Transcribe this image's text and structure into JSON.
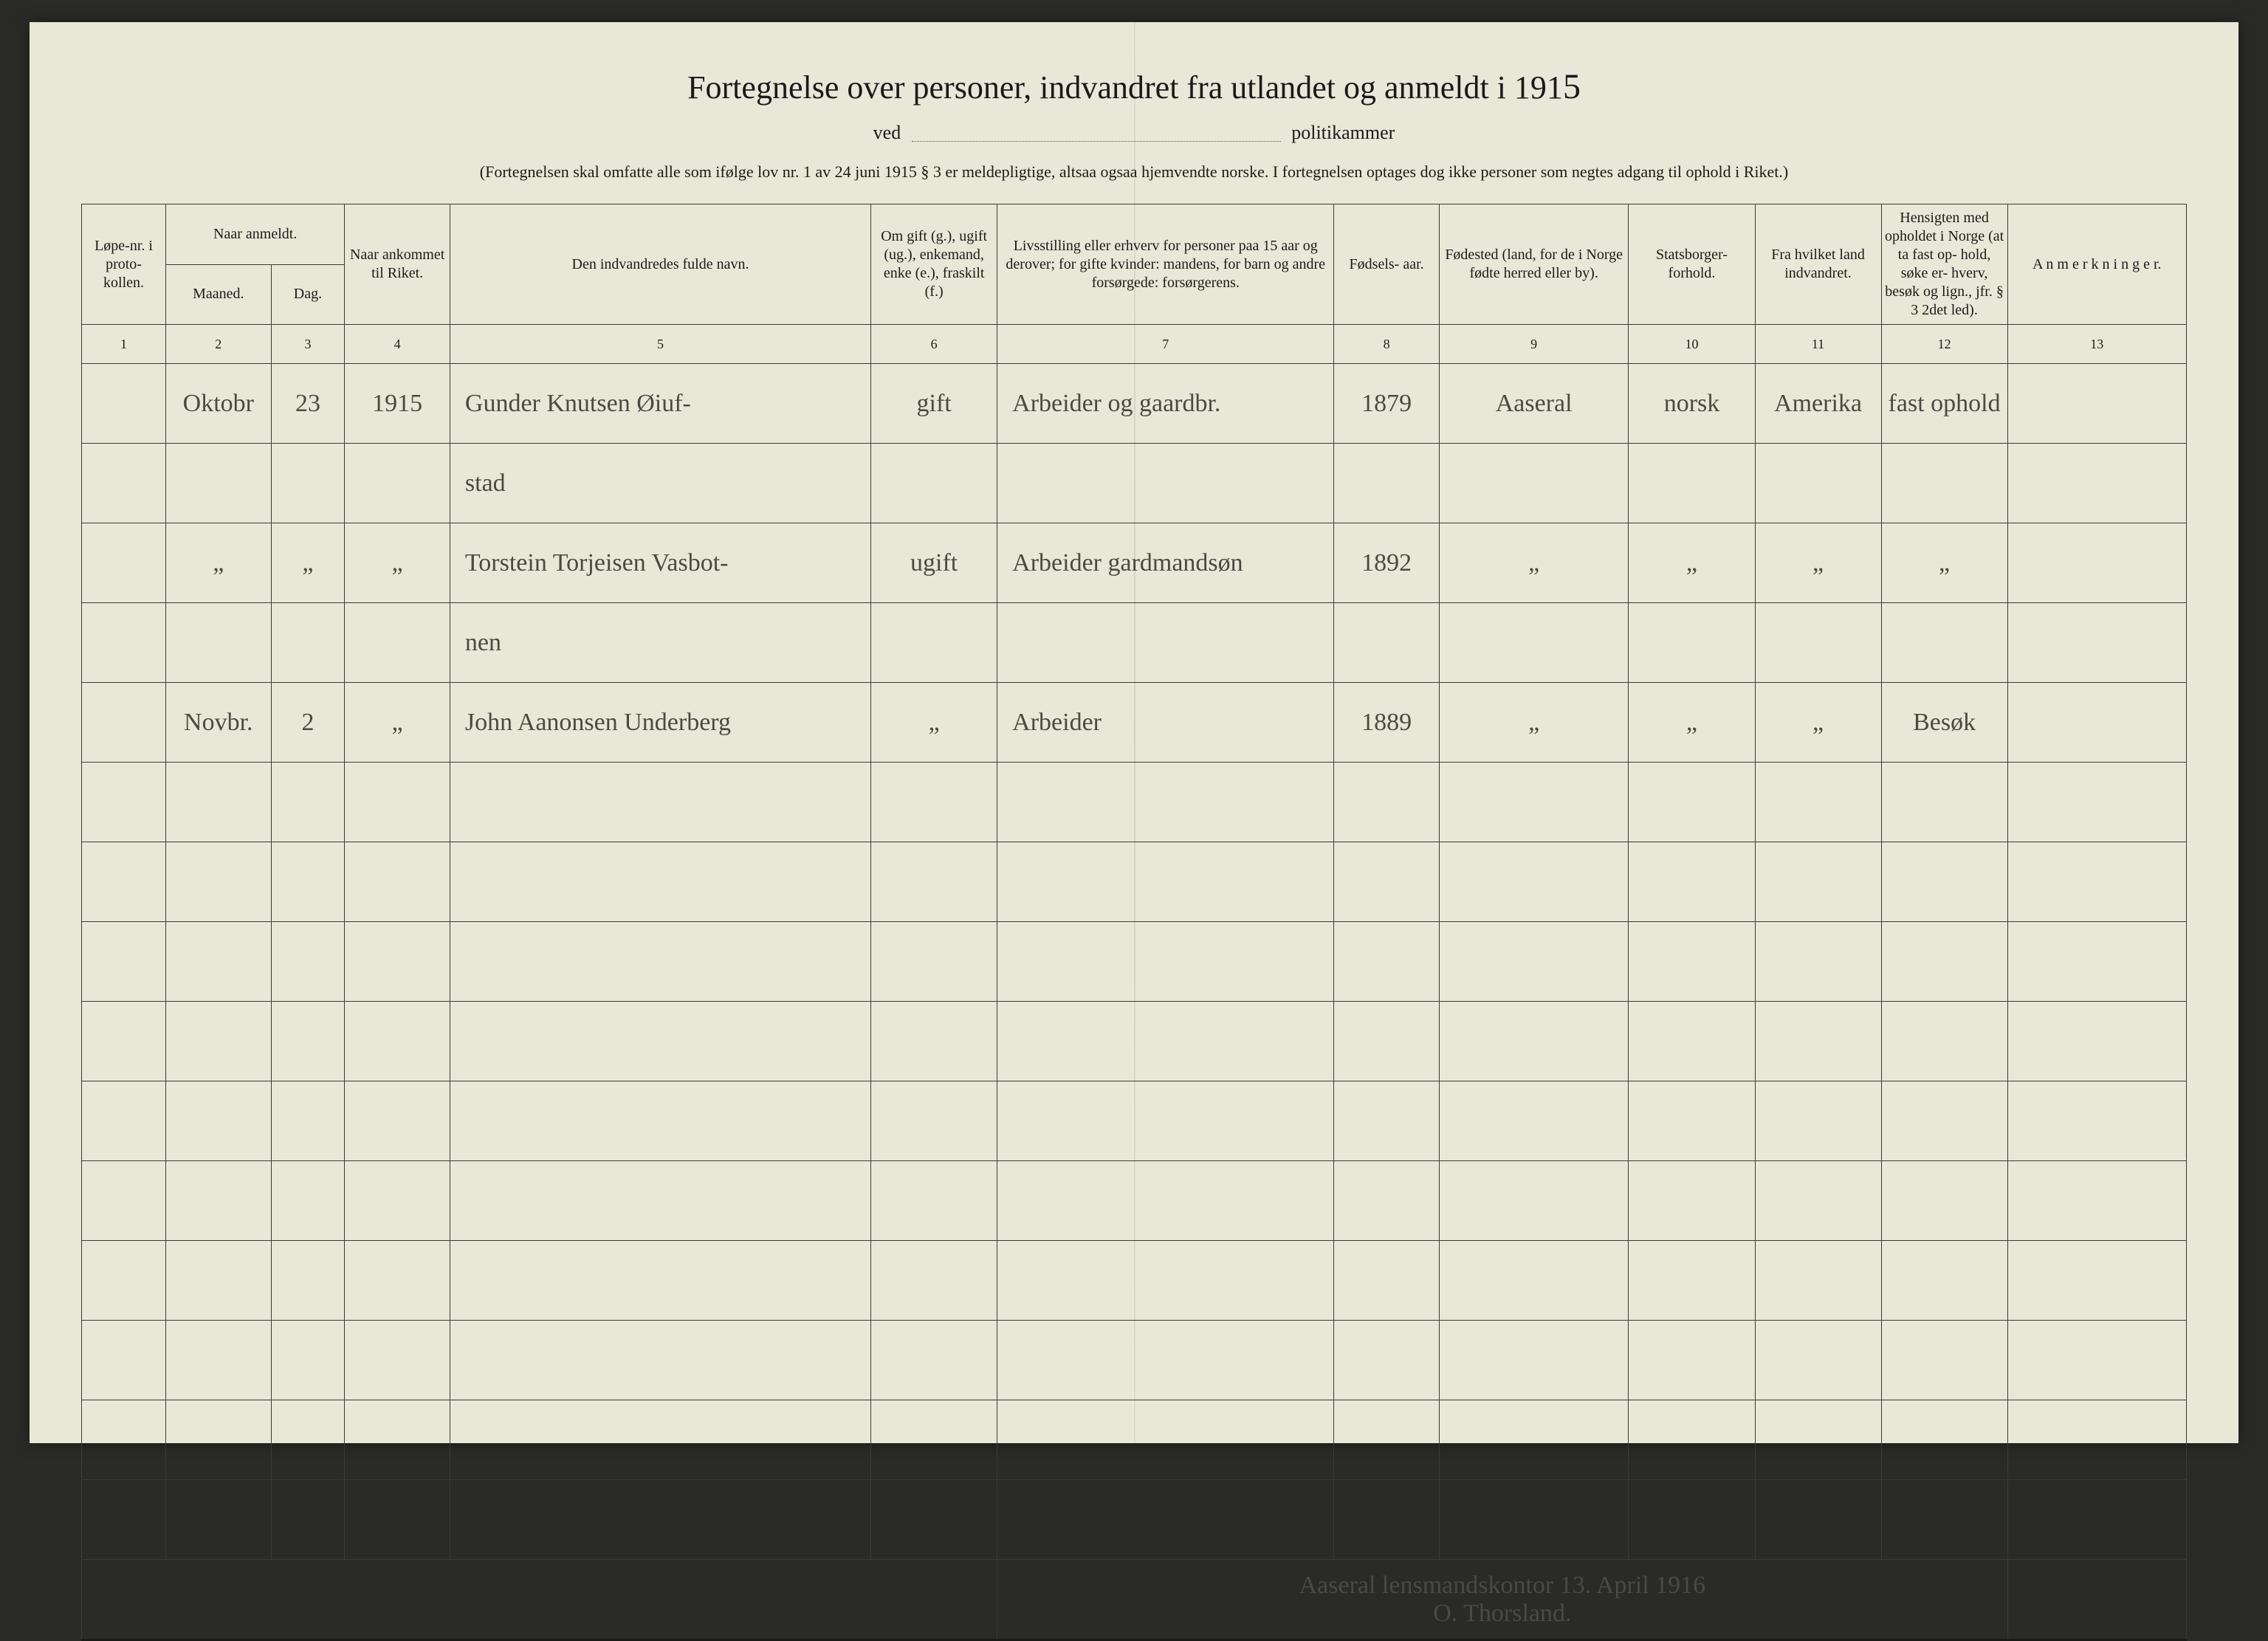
{
  "page": {
    "background_color": "#e9e8d8",
    "ink_color": "#1a1a1a",
    "handwriting_color": "#4a4a44",
    "border_color": "#3a3a3a"
  },
  "header": {
    "title_prefix": "Fortegnelse over personer, indvandret fra utlandet og anmeldt i 191",
    "title_year_hw": "5",
    "title_fontsize": 44,
    "ved": "ved",
    "politikammer": "politikammer",
    "note": "(Fortegnelsen skal omfatte alle som ifølge lov nr. 1 av 24 juni 1915 § 3 er meldepligtige, altsaa ogsaa hjemvendte norske.  I fortegnelsen optages dog ikke personer som negtes adgang til ophold i Riket.)",
    "note_fontsize": 22
  },
  "columns": {
    "widths_pct": [
      4,
      5,
      3.5,
      5,
      20,
      6,
      16,
      5,
      9,
      6,
      6,
      6,
      8.5
    ],
    "c1": "Løpe-nr. i proto- kollen.",
    "c2_group": "Naar anmeldt.",
    "c2a": "Maaned.",
    "c2b": "Dag.",
    "c3": "Naar ankommet til Riket.",
    "c4": "Den indvandredes fulde navn.",
    "c5": "Om gift (g.), ugift (ug.), enkemand, enke (e.), fraskilt (f.)",
    "c6": "Livsstilling eller erhverv for personer paa 15 aar og derover; for gifte kvinder: mandens, for barn og andre forsørgede: forsørgerens.",
    "c7": "Fødsels- aar.",
    "c8": "Fødested (land, for de i Norge fødte herred eller by).",
    "c9": "Statsborger- forhold.",
    "c10": "Fra hvilket land indvandret.",
    "c11": "Hensigten med opholdet i Norge (at ta fast op- hold, søke er- hverv, besøk og lign., jfr. § 3 2det led).",
    "c12": "A n m e r k n i n g e r.",
    "numbers": [
      "1",
      "2",
      "3",
      "4",
      "5",
      "6",
      "7",
      "8",
      "9",
      "10",
      "11",
      "12",
      "13"
    ]
  },
  "rows": [
    {
      "lopenr": "",
      "maaned": "Oktobr",
      "dag": "23",
      "ankommet": "1915",
      "navn": "Gunder Knutsen Øiuf-",
      "navn2": "stad",
      "gift": "gift",
      "livsstilling": "Arbeider og gaardbr.",
      "fodselsaar": "1879",
      "fodested": "Aaseral",
      "statsborger": "norsk",
      "fra_land": "Amerika",
      "hensigt": "fast ophold",
      "anm": ""
    },
    {
      "lopenr": "",
      "maaned": "„",
      "dag": "„",
      "ankommet": "„",
      "navn": "Torstein Torjeisen Vasbot-",
      "navn2": "nen",
      "gift": "ugift",
      "livsstilling": "Arbeider gardmandsøn",
      "fodselsaar": "1892",
      "fodested": "„",
      "statsborger": "„",
      "fra_land": "„",
      "hensigt": "„",
      "anm": ""
    },
    {
      "lopenr": "",
      "maaned": "Novbr.",
      "dag": "2",
      "ankommet": "„",
      "navn": "John Aanonsen Underberg",
      "navn2": "",
      "gift": "„",
      "livsstilling": "Arbeider",
      "fodselsaar": "1889",
      "fodested": "„",
      "statsborger": "„",
      "fra_land": "„",
      "hensigt": "Besøk",
      "anm": ""
    }
  ],
  "empty_row_count": 10,
  "signature": {
    "line1": "Aaseral lensmandskontor 13. April 1916",
    "line2": "O. Thorsland."
  }
}
